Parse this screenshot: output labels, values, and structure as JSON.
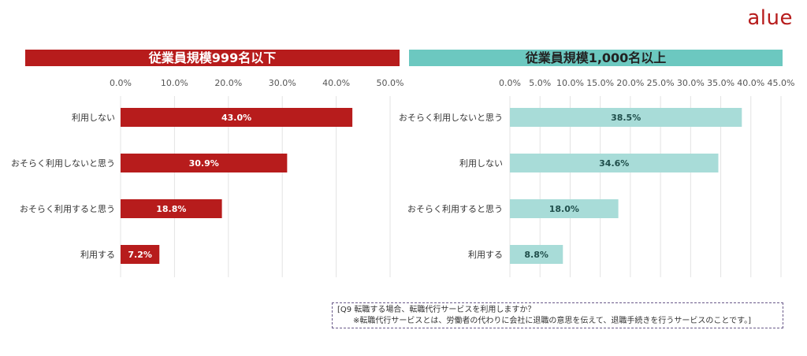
{
  "logo": "alue",
  "chart_data": [
    {
      "type": "bar",
      "orientation": "horizontal",
      "title": "従業員規模999名以下",
      "categories": [
        "利用しない",
        "おそらく利用しないと思う",
        "おそらく利用すると思う",
        "利用する"
      ],
      "values": [
        43.0,
        30.9,
        18.8,
        7.2
      ],
      "data_labels": [
        "43.0%",
        "30.9%",
        "18.8%",
        "7.2%"
      ],
      "xlim": [
        0,
        50
      ],
      "ticks": [
        "0.0%",
        "10.0%",
        "20.0%",
        "30.0%",
        "40.0%",
        "50.0%"
      ],
      "tick_values": [
        0,
        10,
        20,
        30,
        40,
        50
      ],
      "color": "#b71c1c",
      "label_color": "#ffffff",
      "grid": true
    },
    {
      "type": "bar",
      "orientation": "horizontal",
      "title": "従業員規模1,000名以上",
      "categories": [
        "おそらく利用しないと思う",
        "利用しない",
        "おそらく利用すると思う",
        "利用する"
      ],
      "values": [
        38.5,
        34.6,
        18.0,
        8.8
      ],
      "data_labels": [
        "38.5%",
        "34.6%",
        "18.0%",
        "8.8%"
      ],
      "xlim": [
        0,
        45
      ],
      "ticks": [
        "0.0%",
        "5.0%",
        "10.0%",
        "15.0%",
        "20.0%",
        "25.0%",
        "30.0%",
        "35.0%",
        "40.0%",
        "45.0%"
      ],
      "tick_values": [
        0,
        5,
        10,
        15,
        20,
        25,
        30,
        35,
        40,
        45
      ],
      "color": "#a8dcd8",
      "label_color": "#1f4e4b",
      "grid": true
    }
  ],
  "note": {
    "line1": "[Q9 転職する場合、転職代行サービスを利用しますか？",
    "line2": "※転職代行サービスとは、労働者の代わりに会社に退職の意思を伝えて、退職手続きを行うサービスのことです。]"
  }
}
